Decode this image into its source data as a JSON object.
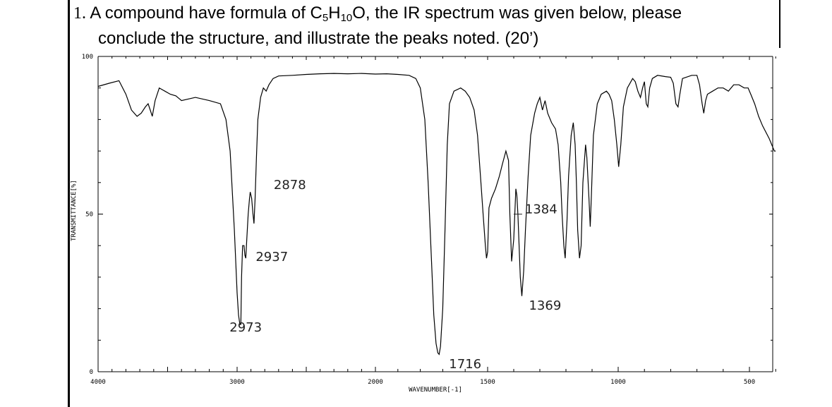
{
  "question": {
    "number": "1.",
    "line1_a": "A compound have formula of C",
    "sub1": "5",
    "line1_b": "H",
    "sub2": "10",
    "line1_c": "O, the IR spectrum was given below, please",
    "line2": "conclude the structure, and illustrate the peaks noted. (20’)"
  },
  "chart_data": {
    "type": "line",
    "xlabel": "WAVENUMBER[-1]",
    "ylabel": "TRANSMITTANCE[%]",
    "xlim": [
      4000,
      400
    ],
    "ylim": [
      0,
      100
    ],
    "x_ticks": [
      "4000",
      "3000",
      "2000",
      "1500",
      "1000",
      "500"
    ],
    "y_ticks": [
      "100",
      "50",
      "0"
    ],
    "peak_labels": [
      {
        "label": "2878",
        "x": 2878,
        "y": 57
      },
      {
        "label": "2937",
        "x": 2937,
        "y": 40
      },
      {
        "label": "2973",
        "x": 2973,
        "y": 19
      },
      {
        "label": "1716",
        "x": 1716,
        "y": 6
      },
      {
        "label": "1384",
        "x": 1384,
        "y": 52
      },
      {
        "label": "1369",
        "x": 1369,
        "y": 28
      }
    ],
    "series": [
      {
        "color": "#000000",
        "points": [
          [
            4000,
            90.5
          ],
          [
            3920,
            91.5
          ],
          [
            3850,
            92.3
          ],
          [
            3800,
            88
          ],
          [
            3760,
            83
          ],
          [
            3720,
            81
          ],
          [
            3690,
            82
          ],
          [
            3660,
            84
          ],
          [
            3640,
            85
          ],
          [
            3625,
            83
          ],
          [
            3610,
            81
          ],
          [
            3590,
            86
          ],
          [
            3560,
            90
          ],
          [
            3520,
            89
          ],
          [
            3480,
            88
          ],
          [
            3440,
            87.5
          ],
          [
            3400,
            86
          ],
          [
            3300,
            87
          ],
          [
            3200,
            86
          ],
          [
            3120,
            85
          ],
          [
            3080,
            80
          ],
          [
            3050,
            70
          ],
          [
            3020,
            45
          ],
          [
            3000,
            25
          ],
          [
            2990,
            18
          ],
          [
            2980,
            15
          ],
          [
            2973,
            15
          ],
          [
            2968,
            30
          ],
          [
            2960,
            40
          ],
          [
            2950,
            40
          ],
          [
            2944,
            37
          ],
          [
            2937,
            36
          ],
          [
            2930,
            42
          ],
          [
            2920,
            50
          ],
          [
            2910,
            55
          ],
          [
            2905,
            57
          ],
          [
            2895,
            55
          ],
          [
            2885,
            50
          ],
          [
            2878,
            47
          ],
          [
            2870,
            55
          ],
          [
            2860,
            68
          ],
          [
            2850,
            80
          ],
          [
            2830,
            87
          ],
          [
            2810,
            90
          ],
          [
            2790,
            89
          ],
          [
            2770,
            91
          ],
          [
            2740,
            93
          ],
          [
            2700,
            93.8
          ],
          [
            2600,
            94
          ],
          [
            2500,
            94.3
          ],
          [
            2400,
            94.5
          ],
          [
            2300,
            94.6
          ],
          [
            2200,
            94.5
          ],
          [
            2100,
            94.6
          ],
          [
            2000,
            94.4
          ],
          [
            1950,
            94.5
          ],
          [
            1900,
            94.3
          ],
          [
            1850,
            94
          ],
          [
            1820,
            93
          ],
          [
            1800,
            90
          ],
          [
            1780,
            80
          ],
          [
            1765,
            60
          ],
          [
            1750,
            35
          ],
          [
            1740,
            18
          ],
          [
            1730,
            9
          ],
          [
            1722,
            6
          ],
          [
            1716,
            5.5
          ],
          [
            1710,
            8
          ],
          [
            1700,
            20
          ],
          [
            1690,
            45
          ],
          [
            1680,
            72
          ],
          [
            1670,
            85
          ],
          [
            1650,
            89
          ],
          [
            1620,
            90
          ],
          [
            1600,
            89
          ],
          [
            1580,
            87
          ],
          [
            1560,
            83
          ],
          [
            1545,
            75
          ],
          [
            1530,
            60
          ],
          [
            1520,
            50
          ],
          [
            1515,
            45
          ],
          [
            1510,
            40
          ],
          [
            1505,
            36
          ],
          [
            1500,
            38
          ],
          [
            1495,
            52
          ],
          [
            1485,
            55
          ],
          [
            1470,
            58
          ],
          [
            1455,
            62
          ],
          [
            1443,
            66
          ],
          [
            1430,
            70
          ],
          [
            1420,
            67
          ],
          [
            1415,
            50
          ],
          [
            1408,
            35
          ],
          [
            1400,
            42
          ],
          [
            1392,
            58
          ],
          [
            1388,
            56
          ],
          [
            1384,
            50
          ],
          [
            1375,
            30
          ],
          [
            1369,
            24
          ],
          [
            1362,
            32
          ],
          [
            1355,
            45
          ],
          [
            1345,
            62
          ],
          [
            1335,
            75
          ],
          [
            1320,
            82
          ],
          [
            1310,
            85
          ],
          [
            1300,
            87
          ],
          [
            1290,
            83
          ],
          [
            1280,
            86
          ],
          [
            1270,
            82
          ],
          [
            1255,
            79
          ],
          [
            1240,
            77
          ],
          [
            1230,
            72
          ],
          [
            1220,
            60
          ],
          [
            1215,
            50
          ],
          [
            1208,
            40
          ],
          [
            1203,
            36
          ],
          [
            1196,
            48
          ],
          [
            1190,
            62
          ],
          [
            1180,
            75
          ],
          [
            1172,
            79
          ],
          [
            1165,
            72
          ],
          [
            1160,
            60
          ],
          [
            1155,
            45
          ],
          [
            1148,
            36
          ],
          [
            1142,
            40
          ],
          [
            1135,
            60
          ],
          [
            1125,
            72
          ],
          [
            1120,
            68
          ],
          [
            1112,
            55
          ],
          [
            1107,
            46
          ],
          [
            1103,
            55
          ],
          [
            1095,
            75
          ],
          [
            1080,
            85
          ],
          [
            1065,
            88
          ],
          [
            1045,
            89
          ],
          [
            1035,
            88
          ],
          [
            1025,
            86
          ],
          [
            1015,
            80
          ],
          [
            1005,
            72
          ],
          [
            998,
            65
          ],
          [
            990,
            72
          ],
          [
            980,
            84
          ],
          [
            965,
            90
          ],
          [
            945,
            93
          ],
          [
            935,
            92
          ],
          [
            925,
            89
          ],
          [
            915,
            87
          ],
          [
            907,
            90
          ],
          [
            900,
            92
          ],
          [
            893,
            85
          ],
          [
            887,
            84
          ],
          [
            880,
            90
          ],
          [
            870,
            93
          ],
          [
            850,
            94
          ],
          [
            820,
            93.6
          ],
          [
            800,
            93.4
          ],
          [
            790,
            91.5
          ],
          [
            780,
            85
          ],
          [
            772,
            84
          ],
          [
            765,
            88
          ],
          [
            755,
            93
          ],
          [
            720,
            94
          ],
          [
            700,
            94
          ],
          [
            690,
            91
          ],
          [
            680,
            85
          ],
          [
            674,
            82
          ],
          [
            667,
            86
          ],
          [
            660,
            88
          ],
          [
            640,
            89
          ],
          [
            620,
            90
          ],
          [
            600,
            90
          ],
          [
            580,
            89
          ],
          [
            560,
            91
          ],
          [
            540,
            91
          ],
          [
            520,
            90
          ],
          [
            505,
            90
          ],
          [
            495,
            88
          ],
          [
            480,
            85
          ],
          [
            465,
            81
          ],
          [
            450,
            78
          ],
          [
            425,
            74
          ],
          [
            405,
            70
          ],
          [
            400,
            70
          ]
        ]
      }
    ]
  }
}
